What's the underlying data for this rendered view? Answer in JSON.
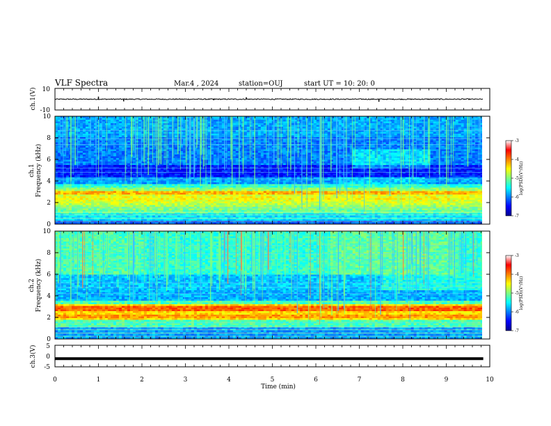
{
  "header": {
    "title": "VLF Spectra",
    "date": "Mar.4  , 2024",
    "station": "station=OUJ",
    "start_ut": "start  UT  =    10: 20: 0"
  },
  "chart_data": [
    {
      "type": "line",
      "name": "ch1-waveform",
      "ylabel": "ch.1(V)",
      "ylim": [
        -10,
        10
      ],
      "yticks": [
        "10",
        "-10"
      ],
      "baseline": 0,
      "spikes": [
        {
          "x": 1.0,
          "y": 2.4
        },
        {
          "x": 1.58,
          "y": -2.0
        },
        {
          "x": 3.65,
          "y": -1.0
        },
        {
          "x": 4.4,
          "y": 1.8
        },
        {
          "x": 7.45,
          "y": -2.4
        }
      ],
      "xlim": [
        0,
        10
      ]
    },
    {
      "type": "heatmap",
      "name": "ch1-spectrogram",
      "ylabel": "Frequency  (kHz)",
      "ylabel_ch": "ch.1",
      "ylim": [
        0,
        10
      ],
      "yticks": [
        "0",
        "2",
        "4",
        "6",
        "8",
        "10"
      ],
      "xlim": [
        0,
        9.85
      ],
      "colorbar": {
        "label": "log(PSD)(V²/Hz)",
        "range": [
          -7,
          -3
        ],
        "ticks": [
          "-3",
          "-4",
          "-5",
          "-6",
          "-7"
        ]
      }
    },
    {
      "type": "heatmap",
      "name": "ch2-spectrogram",
      "ylabel": "Frequency  (kHz)",
      "ylabel_ch": "ch.2",
      "ylim": [
        0,
        10
      ],
      "yticks": [
        "0",
        "2",
        "4",
        "6",
        "8",
        "10"
      ],
      "xlim": [
        0,
        9.85
      ],
      "colorbar": {
        "label": "log(PSD)(V²/Hz)",
        "range": [
          -7,
          -3
        ],
        "ticks": [
          "-3",
          "-4",
          "-5",
          "-6",
          "-7"
        ]
      }
    },
    {
      "type": "line",
      "name": "ch3-waveform",
      "ylabel": "ch.3(V)",
      "ylim": [
        -5,
        5
      ],
      "yticks": [
        "5",
        "0",
        "-5"
      ],
      "level": -1.2,
      "xlim": [
        0,
        10
      ]
    }
  ],
  "xaxis": {
    "label": "Time  (min)",
    "ticks": [
      "0",
      "1",
      "2",
      "3",
      "4",
      "5",
      "6",
      "7",
      "8",
      "9",
      "10"
    ]
  }
}
